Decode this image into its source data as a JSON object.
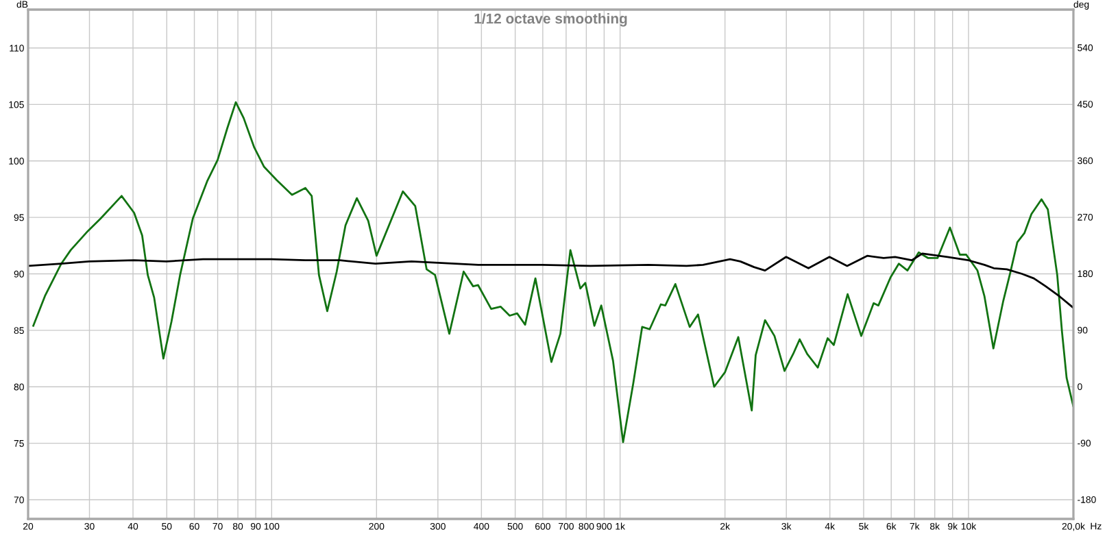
{
  "chart_data": {
    "type": "line",
    "title": "1/12 octave smoothing",
    "xlabel": "Hz",
    "ylabel": "dB",
    "y2label": "deg",
    "log": "x",
    "grid": true,
    "xlim": [
      20,
      20000
    ],
    "xticks": [
      20,
      30,
      40,
      50,
      60,
      70,
      80,
      90,
      100,
      200,
      300,
      400,
      500,
      600,
      700,
      800,
      900,
      {
        "value": 1000,
        "label": "1k"
      },
      {
        "value": 2000,
        "label": "2k"
      },
      {
        "value": 3000,
        "label": "3k"
      },
      {
        "value": 4000,
        "label": "4k"
      },
      {
        "value": 5000,
        "label": "5k"
      },
      {
        "value": 6000,
        "label": "6k"
      },
      {
        "value": 7000,
        "label": "7k"
      },
      {
        "value": 8000,
        "label": "8k"
      },
      {
        "value": 9000,
        "label": "9k"
      },
      {
        "value": 10000,
        "label": "10k"
      },
      {
        "value": 20000,
        "label": "20,0k"
      }
    ],
    "ylim": [
      68.3,
      113.4
    ],
    "yticks": [
      70,
      75,
      80,
      85,
      90,
      95,
      100,
      105,
      110
    ],
    "y2lim": [
      -211,
      600.5
    ],
    "y2ticks": [
      -180,
      -90,
      0,
      90,
      180,
      270,
      360,
      450,
      540
    ],
    "series": [
      {
        "color": "#127312",
        "x": [
          20.7,
          22.4,
          24.9,
          26.5,
          29.7,
          32.3,
          37.1,
          40.3,
          42.5,
          44.1,
          46.0,
          48.9,
          51.6,
          54.6,
          59.4,
          65.3,
          70.0,
          74.6,
          78.9,
          83.1,
          89.1,
          95.0,
          103.4,
          114.4,
          125.0,
          130.3,
          136.7,
          144.4,
          153.7,
          162.9,
          175.6,
          189.3,
          200,
          238,
          258.3,
          278.5,
          294.4,
          323.5,
          355.6,
          378.6,
          391.3,
          426.6,
          453.9,
          482.1,
          506.4,
          533.9,
          571.4,
          635.0,
          674.0,
          720.0,
          769.1,
          794.8,
          843.6,
          882.9,
          954.6,
          1020,
          1091,
          1157,
          1216,
          1309,
          1348,
          1441,
          1584,
          1674,
          1862,
          2001,
          2184,
          2387,
          2450,
          2606,
          2774,
          2964,
          3138,
          3277,
          3444,
          3693,
          3942,
          4105,
          4498,
          4922,
          5342,
          5512,
          5975,
          6308,
          6680,
          7196,
          7658,
          8148,
          8844,
          9441,
          9848,
          10606,
          11112,
          11786,
          12580,
          13176,
          13804,
          14464,
          15155,
          16200,
          16890,
          17972,
          18544,
          19120,
          19980
        ],
        "values": [
          85.4,
          88.1,
          90.9,
          92.1,
          93.8,
          94.9,
          96.9,
          95.4,
          93.4,
          89.9,
          87.9,
          82.5,
          85.8,
          89.9,
          94.9,
          98.2,
          100.1,
          102.9,
          105.2,
          103.8,
          101.2,
          99.5,
          98.3,
          97.0,
          97.6,
          96.9,
          89.9,
          86.7,
          90.2,
          94.3,
          96.7,
          94.7,
          91.6,
          97.3,
          96.0,
          90.4,
          89.9,
          84.7,
          90.2,
          88.9,
          89.0,
          86.9,
          87.1,
          86.3,
          86.5,
          85.5,
          89.6,
          82.2,
          84.7,
          92.1,
          88.7,
          89.2,
          85.4,
          87.2,
          82.3,
          75.1,
          80.3,
          85.3,
          85.1,
          87.3,
          87.2,
          89.1,
          85.3,
          86.4,
          80.0,
          81.3,
          84.4,
          77.9,
          82.8,
          85.9,
          84.5,
          81.4,
          82.9,
          84.2,
          82.9,
          81.7,
          84.3,
          83.7,
          88.2,
          84.5,
          87.4,
          87.2,
          89.7,
          90.9,
          90.3,
          91.9,
          91.4,
          91.4,
          94.1,
          91.7,
          91.7,
          90.3,
          88.0,
          83.4,
          87.6,
          90.1,
          92.8,
          93.6,
          95.3,
          96.6,
          95.7,
          89.9,
          84.9,
          80.8,
          78.3
        ]
      },
      {
        "color": "#000000",
        "x": [
          20,
          24.9,
          29.9,
          40.3,
          49.9,
          63.5,
          79.6,
          99.9,
          125,
          157,
          198.6,
          252,
          392,
          596,
          822,
          1206,
          1552,
          1730,
          2068,
          2214,
          2423,
          2606,
          2996,
          3472,
          3990,
          4483,
          5120,
          5705,
          6156,
          6870,
          7373,
          8700,
          10000,
          11112,
          11820,
          12880,
          14240,
          15400,
          16650,
          18260,
          19980
        ],
        "values": [
          90.7,
          90.9,
          91.1,
          91.2,
          91.1,
          91.3,
          91.3,
          91.3,
          91.2,
          91.2,
          90.9,
          91.1,
          90.8,
          90.8,
          90.7,
          90.8,
          90.7,
          90.8,
          91.3,
          91.1,
          90.6,
          90.3,
          91.5,
          90.5,
          91.5,
          90.7,
          91.6,
          91.4,
          91.5,
          91.2,
          91.8,
          91.5,
          91.2,
          90.8,
          90.5,
          90.4,
          90.0,
          89.6,
          88.9,
          88.0,
          87.0
        ]
      }
    ]
  }
}
